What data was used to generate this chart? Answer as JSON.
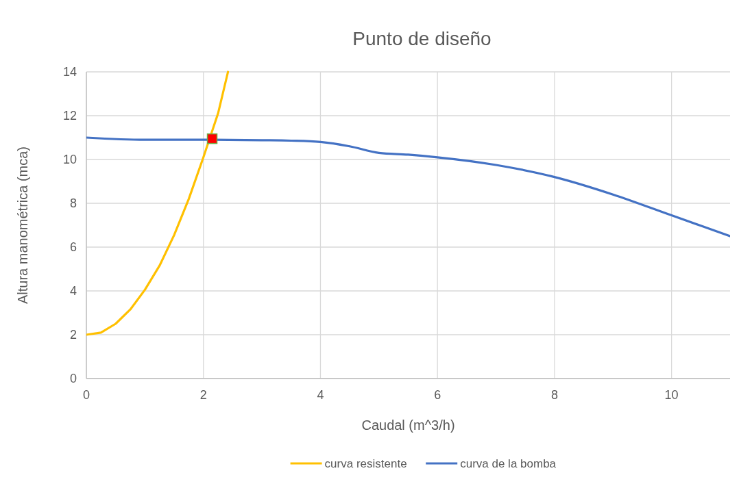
{
  "chart_data": {
    "type": "line",
    "title": "Punto de diseño",
    "xlabel": "Caudal  (m^3/h)",
    "ylabel": "Altura manométrica (mca)",
    "xlim": [
      0,
      11
    ],
    "xticks": [
      0,
      2,
      4,
      6,
      8,
      10
    ],
    "ylim": [
      0,
      14
    ],
    "yticks": [
      0,
      2,
      4,
      6,
      8,
      10,
      12,
      14
    ],
    "grid": true,
    "legend": "bottom",
    "series": [
      {
        "name": "curva resistente",
        "color": "#ffc000",
        "x": [
          0,
          0.25,
          0.5,
          0.75,
          1,
          1.25,
          1.5,
          1.75,
          2,
          2.25,
          2.42
        ],
        "values": [
          2,
          2.1,
          2.5,
          3.15,
          4.05,
          5.15,
          6.55,
          8.2,
          10.1,
          12.1,
          14
        ]
      },
      {
        "name": "curva de la bomba",
        "color": "#4472c4",
        "x": [
          0,
          1,
          2,
          3,
          3.5,
          4,
          4.5,
          5,
          5.5,
          6,
          7,
          8,
          9,
          10,
          11
        ],
        "values": [
          11,
          10.9,
          10.9,
          10.88,
          10.86,
          10.8,
          10.6,
          10.3,
          10.22,
          10.1,
          9.75,
          9.2,
          8.4,
          7.45,
          6.5
        ]
      },
      {
        "type": "scatter",
        "color": "#ff0000",
        "marker": "square",
        "x": [
          2.15
        ],
        "values": [
          10.95
        ]
      }
    ]
  }
}
